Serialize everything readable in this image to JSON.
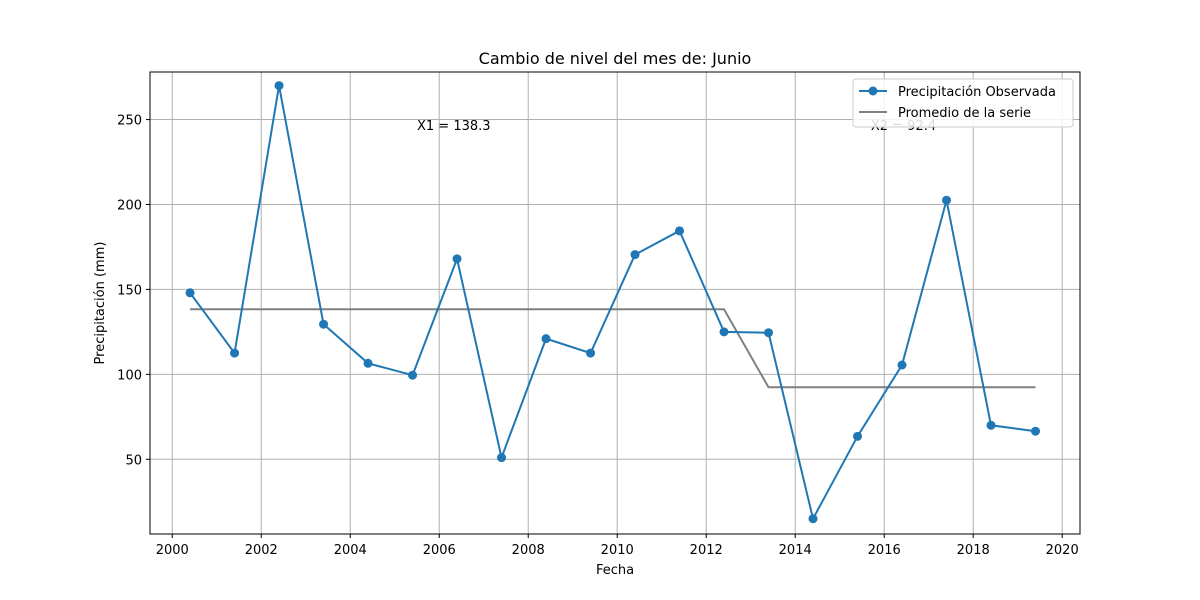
{
  "chart_data": {
    "type": "line",
    "title": "Cambio de nivel del mes de: Junio",
    "xlabel": "Fecha",
    "ylabel": "Precipitación (mm)",
    "xlim": [
      1999.5,
      2020.4
    ],
    "ylim": [
      6,
      278
    ],
    "xticks": [
      2000,
      2002,
      2004,
      2006,
      2008,
      2010,
      2012,
      2014,
      2016,
      2018,
      2020
    ],
    "yticks": [
      50,
      100,
      150,
      200,
      250
    ],
    "grid": true,
    "legend_position": "top-right",
    "series": [
      {
        "name": "Precipitación Observada",
        "color": "#1f77b4",
        "marker": "circle",
        "x": [
          2000.4,
          2001.4,
          2002.4,
          2003.4,
          2004.4,
          2005.4,
          2006.4,
          2007.4,
          2008.4,
          2009.4,
          2010.4,
          2011.4,
          2012.4,
          2013.4,
          2014.4,
          2015.4,
          2016.4,
          2017.4,
          2018.4,
          2019.4
        ],
        "values": [
          148,
          112.5,
          270,
          129.5,
          106.5,
          99.5,
          168,
          51,
          121,
          112.5,
          170.5,
          184.5,
          125,
          124.5,
          15,
          63.5,
          105.5,
          202.5,
          70,
          66.5
        ]
      },
      {
        "name": "Promedio de la serie",
        "color": "#808080",
        "marker": "none",
        "x": [
          2000.4,
          2012.4,
          2013.4,
          2019.4
        ],
        "values": [
          138.3,
          138.3,
          92.4,
          92.4
        ]
      }
    ],
    "annotations": [
      {
        "text": "X1 = 138.3",
        "x": 2005.5,
        "y": 244
      },
      {
        "text": "X2 = 92.4",
        "x": 2015.7,
        "y": 244
      }
    ]
  }
}
